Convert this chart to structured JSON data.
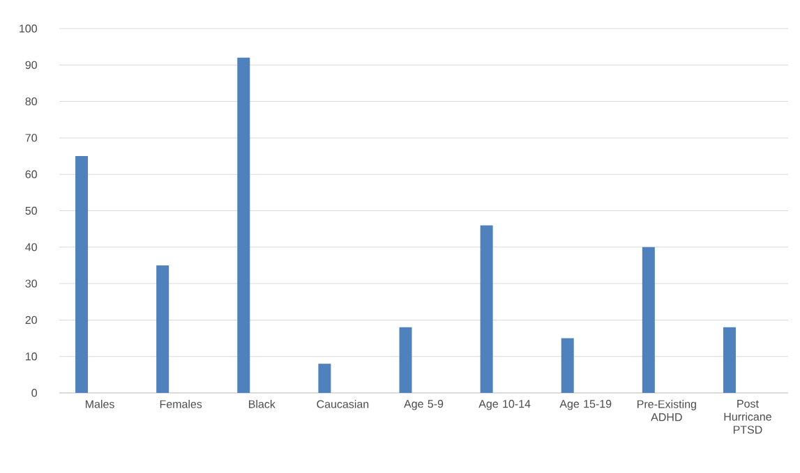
{
  "chart_data": {
    "type": "bar",
    "categories": [
      "Males",
      "Females",
      "Black",
      "Caucasian",
      "Age 5-9",
      "Age 10-14",
      "Age 15-19",
      "Pre-Existing ADHD",
      "Post Hurricane PTSD"
    ],
    "values": [
      65,
      35,
      92,
      8,
      18,
      46,
      15,
      40,
      18
    ],
    "color": "#4f81bd",
    "ylim": [
      0,
      100
    ],
    "yticks": [
      0,
      10,
      20,
      30,
      40,
      50,
      60,
      70,
      80,
      90,
      100
    ],
    "grid": "y"
  }
}
